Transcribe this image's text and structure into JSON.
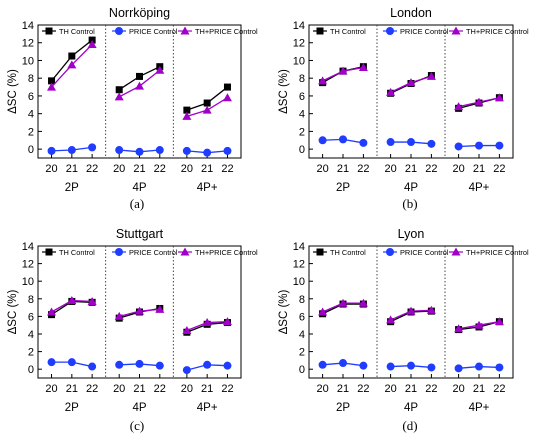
{
  "figure": {
    "panel_labels": [
      "(a)",
      "(b)",
      "(c)",
      "(d)"
    ]
  },
  "chart_data": [
    {
      "type": "line",
      "title": "Norrköping",
      "ylabel": "ΔSC (%)",
      "ylim": [
        -1,
        14
      ],
      "yticks": [
        0,
        2,
        4,
        6,
        8,
        10,
        12,
        14
      ],
      "groups": [
        {
          "name": "2P",
          "x": [
            "20",
            "21",
            "22"
          ]
        },
        {
          "name": "4P",
          "x": [
            "20",
            "21",
            "22"
          ]
        },
        {
          "name": "4P+",
          "x": [
            "20",
            "21",
            "22"
          ]
        }
      ],
      "legend_position": "top",
      "series": [
        {
          "name": "TH Control",
          "color": "#000000",
          "marker": "square",
          "values": [
            [
              7.7,
              10.5,
              12.3
            ],
            [
              6.7,
              8.2,
              9.3
            ],
            [
              4.4,
              5.2,
              7.0
            ]
          ]
        },
        {
          "name": "PRICE Control",
          "color": "#1f3cff",
          "marker": "circle",
          "values": [
            [
              -0.2,
              -0.1,
              0.2
            ],
            [
              -0.1,
              -0.3,
              -0.1
            ],
            [
              -0.2,
              -0.4,
              -0.2
            ]
          ]
        },
        {
          "name": "TH+PRICE Control",
          "color": "#a000c8",
          "marker": "triangle",
          "values": [
            [
              7.0,
              9.5,
              11.8
            ],
            [
              5.9,
              7.1,
              8.9
            ],
            [
              3.7,
              4.4,
              5.8
            ]
          ]
        }
      ]
    },
    {
      "type": "line",
      "title": "London",
      "ylabel": "ΔSC (%)",
      "ylim": [
        -1,
        14
      ],
      "yticks": [
        0,
        2,
        4,
        6,
        8,
        10,
        12,
        14
      ],
      "groups": [
        {
          "name": "2P",
          "x": [
            "20",
            "21",
            "22"
          ]
        },
        {
          "name": "4P",
          "x": [
            "20",
            "21",
            "22"
          ]
        },
        {
          "name": "4P+",
          "x": [
            "20",
            "21",
            "22"
          ]
        }
      ],
      "legend_position": "top",
      "series": [
        {
          "name": "TH Control",
          "color": "#000000",
          "marker": "square",
          "values": [
            [
              7.5,
              8.8,
              9.3
            ],
            [
              6.3,
              7.4,
              8.3
            ],
            [
              4.6,
              5.2,
              5.8
            ]
          ]
        },
        {
          "name": "PRICE Control",
          "color": "#1f3cff",
          "marker": "circle",
          "values": [
            [
              1.0,
              1.1,
              0.7
            ],
            [
              0.8,
              0.8,
              0.6
            ],
            [
              0.3,
              0.4,
              0.4
            ]
          ]
        },
        {
          "name": "TH+PRICE Control",
          "color": "#a000c8",
          "marker": "triangle",
          "values": [
            [
              7.7,
              8.8,
              9.2
            ],
            [
              6.4,
              7.5,
              8.2
            ],
            [
              4.8,
              5.3,
              5.8
            ]
          ]
        }
      ]
    },
    {
      "type": "line",
      "title": "Stuttgart",
      "ylabel": "ΔSC (%)",
      "ylim": [
        -1,
        14
      ],
      "yticks": [
        0,
        2,
        4,
        6,
        8,
        10,
        12,
        14
      ],
      "groups": [
        {
          "name": "2P",
          "x": [
            "20",
            "21",
            "22"
          ]
        },
        {
          "name": "4P",
          "x": [
            "20",
            "21",
            "22"
          ]
        },
        {
          "name": "4P+",
          "x": [
            "20",
            "21",
            "22"
          ]
        }
      ],
      "legend_position": "top",
      "series": [
        {
          "name": "TH Control",
          "color": "#000000",
          "marker": "square",
          "values": [
            [
              6.2,
              7.7,
              7.6
            ],
            [
              5.8,
              6.5,
              6.9
            ],
            [
              4.2,
              5.1,
              5.3
            ]
          ]
        },
        {
          "name": "PRICE Control",
          "color": "#1f3cff",
          "marker": "circle",
          "values": [
            [
              0.8,
              0.8,
              0.3
            ],
            [
              0.5,
              0.6,
              0.4
            ],
            [
              -0.1,
              0.5,
              0.4
            ]
          ]
        },
        {
          "name": "TH+PRICE Control",
          "color": "#a000c8",
          "marker": "triangle",
          "values": [
            [
              6.5,
              7.8,
              7.7
            ],
            [
              6.0,
              6.6,
              6.8
            ],
            [
              4.4,
              5.3,
              5.4
            ]
          ]
        }
      ]
    },
    {
      "type": "line",
      "title": "Lyon",
      "ylabel": "ΔSC (%)",
      "ylim": [
        -1,
        14
      ],
      "yticks": [
        0,
        2,
        4,
        6,
        8,
        10,
        12,
        14
      ],
      "groups": [
        {
          "name": "2P",
          "x": [
            "20",
            "21",
            "22"
          ]
        },
        {
          "name": "4P",
          "x": [
            "20",
            "21",
            "22"
          ]
        },
        {
          "name": "4P+",
          "x": [
            "20",
            "21",
            "22"
          ]
        }
      ],
      "legend_position": "top",
      "series": [
        {
          "name": "TH Control",
          "color": "#000000",
          "marker": "square",
          "values": [
            [
              6.3,
              7.4,
              7.4
            ],
            [
              5.4,
              6.5,
              6.6
            ],
            [
              4.5,
              4.8,
              5.4
            ]
          ]
        },
        {
          "name": "PRICE Control",
          "color": "#1f3cff",
          "marker": "circle",
          "values": [
            [
              0.5,
              0.7,
              0.4
            ],
            [
              0.3,
              0.4,
              0.2
            ],
            [
              0.1,
              0.3,
              0.2
            ]
          ]
        },
        {
          "name": "TH+PRICE Control",
          "color": "#a000c8",
          "marker": "triangle",
          "values": [
            [
              6.5,
              7.5,
              7.5
            ],
            [
              5.6,
              6.6,
              6.7
            ],
            [
              4.6,
              5.0,
              5.4
            ]
          ]
        }
      ]
    }
  ]
}
